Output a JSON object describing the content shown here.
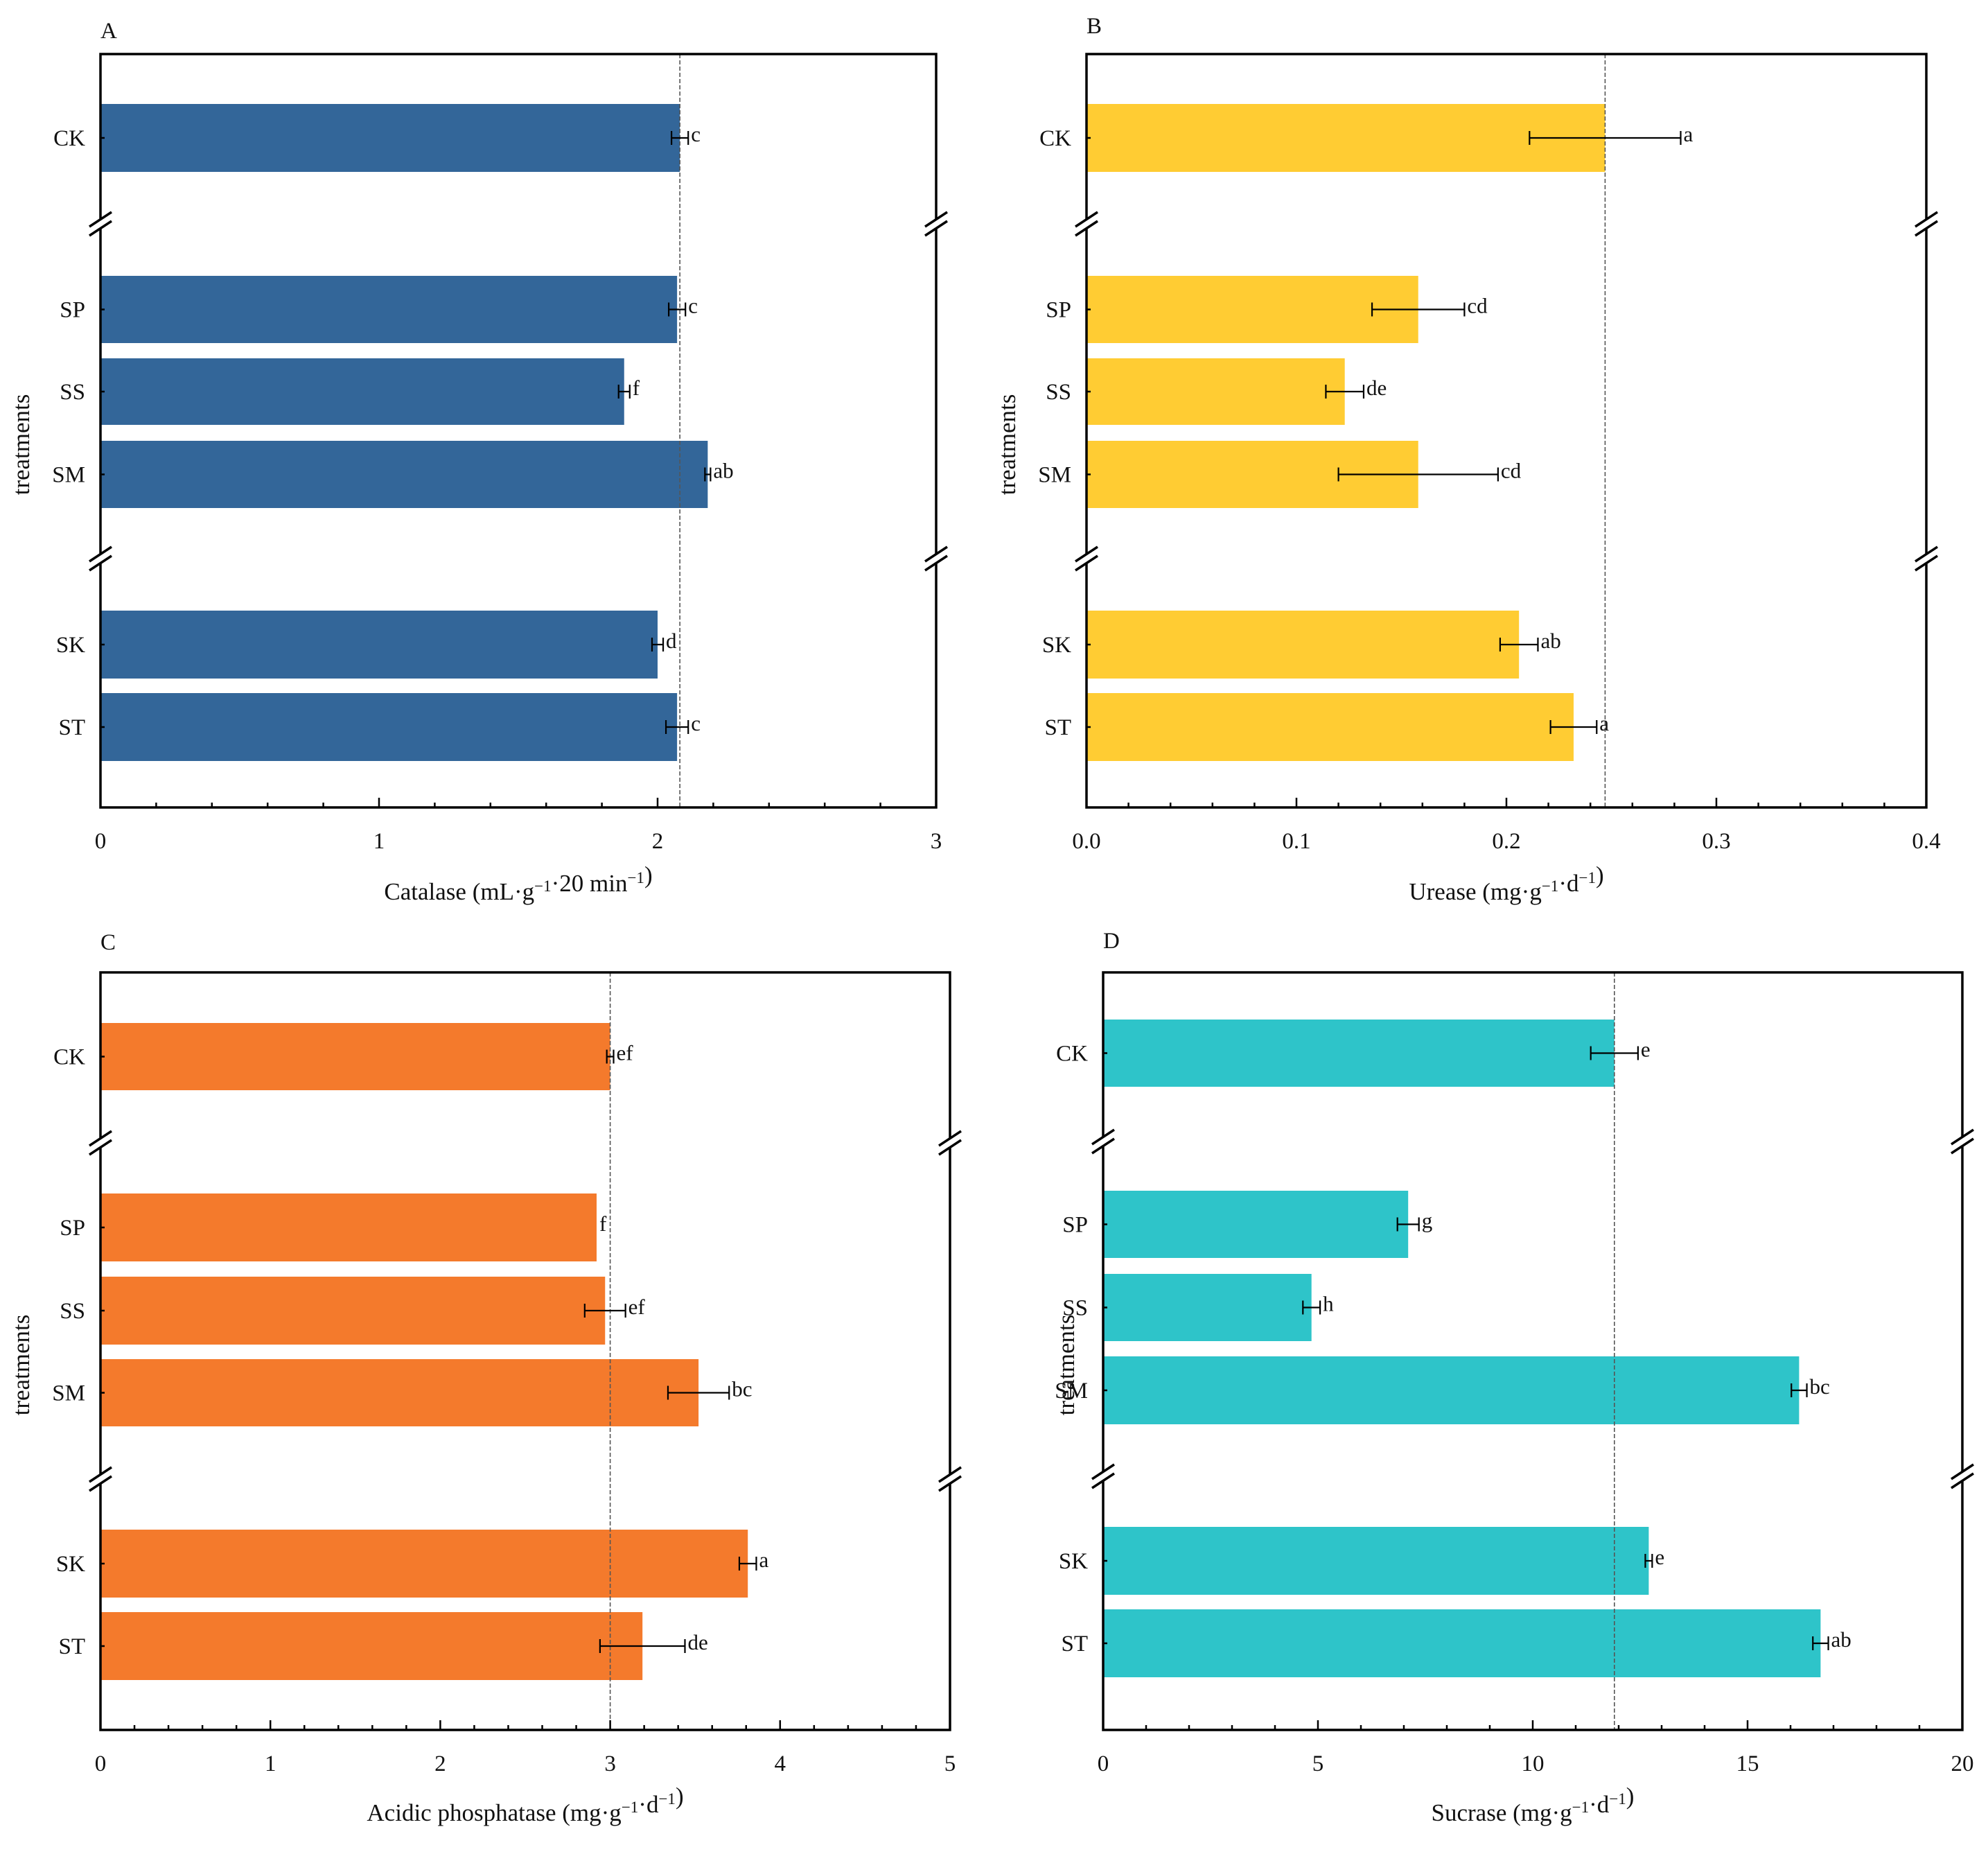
{
  "chart_data": [
    {
      "type": "bar",
      "orientation": "horizontal",
      "panel_label": "A",
      "categories": [
        "CK",
        "SP",
        "SS",
        "SM",
        "SK",
        "ST"
      ],
      "values": [
        2.08,
        2.07,
        1.88,
        2.18,
        2.0,
        2.07
      ],
      "errors": [
        0.03,
        0.03,
        0.02,
        0.01,
        0.02,
        0.04
      ],
      "letters": [
        "c",
        "c",
        "f",
        "ab",
        "d",
        "c"
      ],
      "color": "#336699",
      "xlabel": "Catalase (mL·g⁻¹·20 min⁻¹)",
      "ylabel": "treatments",
      "xlim": [
        0,
        3
      ],
      "xticks": [
        "0",
        "1",
        "2",
        "3"
      ],
      "reference_line": 2.08
    },
    {
      "type": "bar",
      "orientation": "horizontal",
      "panel_label": "B",
      "categories": [
        "CK",
        "SP",
        "SS",
        "SM",
        "SK",
        "ST"
      ],
      "values": [
        0.247,
        0.158,
        0.123,
        0.158,
        0.206,
        0.232
      ],
      "errors": [
        0.036,
        0.022,
        0.009,
        0.038,
        0.009,
        0.011
      ],
      "letters": [
        "a",
        "cd",
        "de",
        "cd",
        "ab",
        "a"
      ],
      "color": "#FFCC33",
      "xlabel": "Urease (mg·g⁻¹·d⁻¹)",
      "ylabel": "treatments",
      "xlim": [
        0,
        0.4
      ],
      "xticks": [
        "0.0",
        "0.1",
        "0.2",
        "0.3",
        "0.4"
      ],
      "reference_line": 0.247
    },
    {
      "type": "bar",
      "orientation": "horizontal",
      "panel_label": "C",
      "categories": [
        "CK",
        "SP",
        "SS",
        "SM",
        "SK",
        "ST"
      ],
      "values": [
        3.0,
        2.92,
        2.97,
        3.52,
        3.81,
        3.19
      ],
      "errors": [
        0.02,
        0.0,
        0.12,
        0.18,
        0.05,
        0.25
      ],
      "letters": [
        "ef",
        "f",
        "ef",
        "bc",
        "a",
        "de"
      ],
      "color": "#F47A2C",
      "xlabel": "Acidic phosphatase (mg·g⁻¹·d⁻¹)",
      "ylabel": "treatments",
      "xlim": [
        0,
        5
      ],
      "xticks": [
        "0",
        "1",
        "2",
        "3",
        "4",
        "5"
      ],
      "reference_line": 3.0
    },
    {
      "type": "bar",
      "orientation": "horizontal",
      "panel_label": "D",
      "categories": [
        "CK",
        "SP",
        "SS",
        "SM",
        "SK",
        "ST"
      ],
      "values": [
        11.9,
        7.1,
        4.85,
        16.2,
        12.7,
        16.7
      ],
      "errors": [
        0.55,
        0.25,
        0.2,
        0.18,
        0.08,
        0.18
      ],
      "letters": [
        "e",
        "g",
        "h",
        "bc",
        "e",
        "ab"
      ],
      "color": "#2EC4C9",
      "xlabel": "Sucrase (mg·g⁻¹·d⁻¹)",
      "ylabel": "treatments",
      "xlim": [
        0,
        20
      ],
      "xticks": [
        "0",
        "5",
        "10",
        "15",
        "20"
      ],
      "reference_line": 11.9
    }
  ]
}
